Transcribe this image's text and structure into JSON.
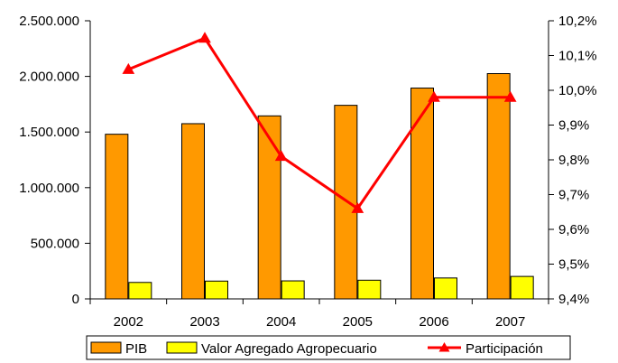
{
  "chart_data": {
    "type": "bar",
    "categories": [
      "2002",
      "2003",
      "2004",
      "2005",
      "2006",
      "2007"
    ],
    "series": [
      {
        "name": "PIB",
        "type": "bar",
        "axis": "left",
        "color": "#FF9900",
        "values": [
          1480000,
          1575000,
          1645000,
          1740000,
          1895000,
          2025000
        ]
      },
      {
        "name": "Valor Agregado Agropecuario",
        "type": "bar",
        "axis": "left",
        "color": "#FFFF00",
        "values": [
          148000,
          160000,
          162000,
          168000,
          188000,
          202000
        ]
      },
      {
        "name": "Participación",
        "type": "line",
        "axis": "right",
        "color": "#FF0000",
        "values": [
          10.06,
          10.15,
          9.81,
          9.66,
          9.98,
          9.98
        ]
      }
    ],
    "y_left": {
      "min": 0,
      "max": 2500000,
      "ticks": [
        0,
        500000,
        1000000,
        1500000,
        2000000,
        2500000
      ],
      "tick_labels": [
        "0",
        "500.000",
        "1.000.000",
        "1.500.000",
        "2.000.000",
        "2.500.000"
      ]
    },
    "y_right": {
      "min": 9.4,
      "max": 10.2,
      "ticks": [
        9.4,
        9.5,
        9.6,
        9.7,
        9.8,
        9.9,
        10.0,
        10.1,
        10.2
      ],
      "tick_labels": [
        "9,4%",
        "9,5%",
        "9,6%",
        "9,7%",
        "9,8%",
        "9,9%",
        "10,0%",
        "10,1%",
        "10,2%"
      ]
    },
    "title": "",
    "xlabel": "",
    "ylabel": "",
    "grid": false,
    "legend": "bottom",
    "colors": {
      "axis": "#000000",
      "bar_outline": "#000000"
    }
  }
}
